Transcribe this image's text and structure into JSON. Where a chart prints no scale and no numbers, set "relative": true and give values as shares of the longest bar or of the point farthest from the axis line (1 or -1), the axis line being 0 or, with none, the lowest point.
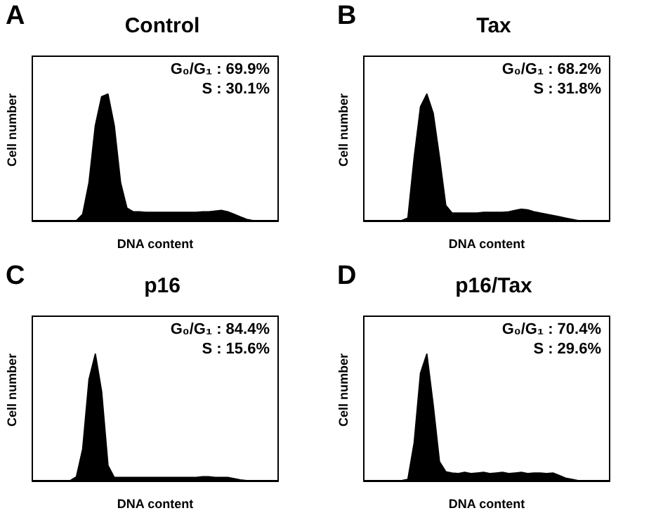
{
  "chart_data": [
    {
      "type": "area",
      "title": "Control",
      "xlabel": "DNA content",
      "ylabel": "Cell number",
      "relative": true,
      "color": "#000000",
      "annotations": [
        "A",
        "G₀/G₁ : 69.9%",
        "S : 30.1%"
      ],
      "categories": [
        null,
        null,
        null,
        null,
        null,
        null,
        null,
        null,
        null,
        null,
        null,
        null,
        null,
        null,
        null,
        null,
        null,
        null,
        null,
        null,
        null,
        null,
        null,
        null,
        null,
        null,
        null,
        null,
        null,
        null,
        null,
        null,
        null,
        null,
        null,
        null,
        null,
        null,
        null,
        null
      ],
      "values": [
        0,
        0,
        0,
        0,
        0,
        0,
        0,
        0,
        0.05,
        0.3,
        0.75,
        0.98,
        1,
        0.75,
        0.3,
        0.1,
        0.07,
        0.07,
        0.065,
        0.065,
        0.065,
        0.065,
        0.065,
        0.065,
        0.065,
        0.065,
        0.065,
        0.07,
        0.07,
        0.075,
        0.08,
        0.07,
        0.05,
        0.03,
        0.01,
        0,
        0,
        0,
        0,
        0
      ]
    },
    {
      "type": "area",
      "title": "Tax",
      "xlabel": "DNA content",
      "ylabel": "Cell number",
      "relative": true,
      "color": "#000000",
      "annotations": [
        "B",
        "G₀/G₁ : 68.2%",
        "S : 31.8%"
      ],
      "categories": [
        null,
        null,
        null,
        null,
        null,
        null,
        null,
        null,
        null,
        null,
        null,
        null,
        null,
        null,
        null,
        null,
        null,
        null,
        null,
        null,
        null,
        null,
        null,
        null,
        null,
        null,
        null,
        null,
        null,
        null,
        null,
        null,
        null,
        null,
        null,
        null,
        null,
        null,
        null,
        null
      ],
      "values": [
        0,
        0,
        0,
        0,
        0,
        0,
        0,
        0.02,
        0.5,
        0.9,
        1,
        0.85,
        0.5,
        0.12,
        0.06,
        0.06,
        0.06,
        0.06,
        0.06,
        0.065,
        0.065,
        0.065,
        0.065,
        0.07,
        0.08,
        0.09,
        0.085,
        0.07,
        0.06,
        0.05,
        0.04,
        0.03,
        0.02,
        0.01,
        0,
        0,
        0,
        0,
        0,
        0
      ]
    },
    {
      "type": "area",
      "title": "p16",
      "xlabel": "DNA content",
      "ylabel": "Cell number",
      "relative": true,
      "color": "#000000",
      "annotations": [
        "C",
        "G₀/G₁ : 84.4%",
        "S : 15.6%"
      ],
      "categories": [
        null,
        null,
        null,
        null,
        null,
        null,
        null,
        null,
        null,
        null,
        null,
        null,
        null,
        null,
        null,
        null,
        null,
        null,
        null,
        null,
        null,
        null,
        null,
        null,
        null,
        null,
        null,
        null,
        null,
        null,
        null,
        null,
        null,
        null,
        null,
        null,
        null,
        null,
        null,
        null
      ],
      "values": [
        0,
        0,
        0,
        0,
        0,
        0,
        0,
        0.03,
        0.25,
        0.8,
        1,
        0.7,
        0.12,
        0.025,
        0.025,
        0.025,
        0.025,
        0.025,
        0.025,
        0.025,
        0.025,
        0.025,
        0.025,
        0.025,
        0.025,
        0.025,
        0.025,
        0.03,
        0.03,
        0.025,
        0.025,
        0.025,
        0.015,
        0.005,
        0,
        0,
        0,
        0,
        0,
        0
      ]
    },
    {
      "type": "area",
      "title": "p16/Tax",
      "xlabel": "DNA content",
      "ylabel": "Cell number",
      "relative": true,
      "color": "#000000",
      "annotations": [
        "D",
        "G₀/G₁ : 70.4%",
        "S : 29.6%"
      ],
      "categories": [
        null,
        null,
        null,
        null,
        null,
        null,
        null,
        null,
        null,
        null,
        null,
        null,
        null,
        null,
        null,
        null,
        null,
        null,
        null,
        null,
        null,
        null,
        null,
        null,
        null,
        null,
        null,
        null,
        null,
        null,
        null,
        null,
        null,
        null,
        null,
        null,
        null,
        null,
        null,
        null
      ],
      "values": [
        0,
        0,
        0,
        0,
        0,
        0,
        0,
        0.01,
        0.3,
        0.85,
        1,
        0.6,
        0.15,
        0.07,
        0.06,
        0.055,
        0.065,
        0.055,
        0.06,
        0.065,
        0.055,
        0.06,
        0.065,
        0.055,
        0.06,
        0.065,
        0.055,
        0.06,
        0.06,
        0.055,
        0.06,
        0.04,
        0.02,
        0.01,
        0,
        0,
        0,
        0,
        0,
        0
      ]
    }
  ]
}
